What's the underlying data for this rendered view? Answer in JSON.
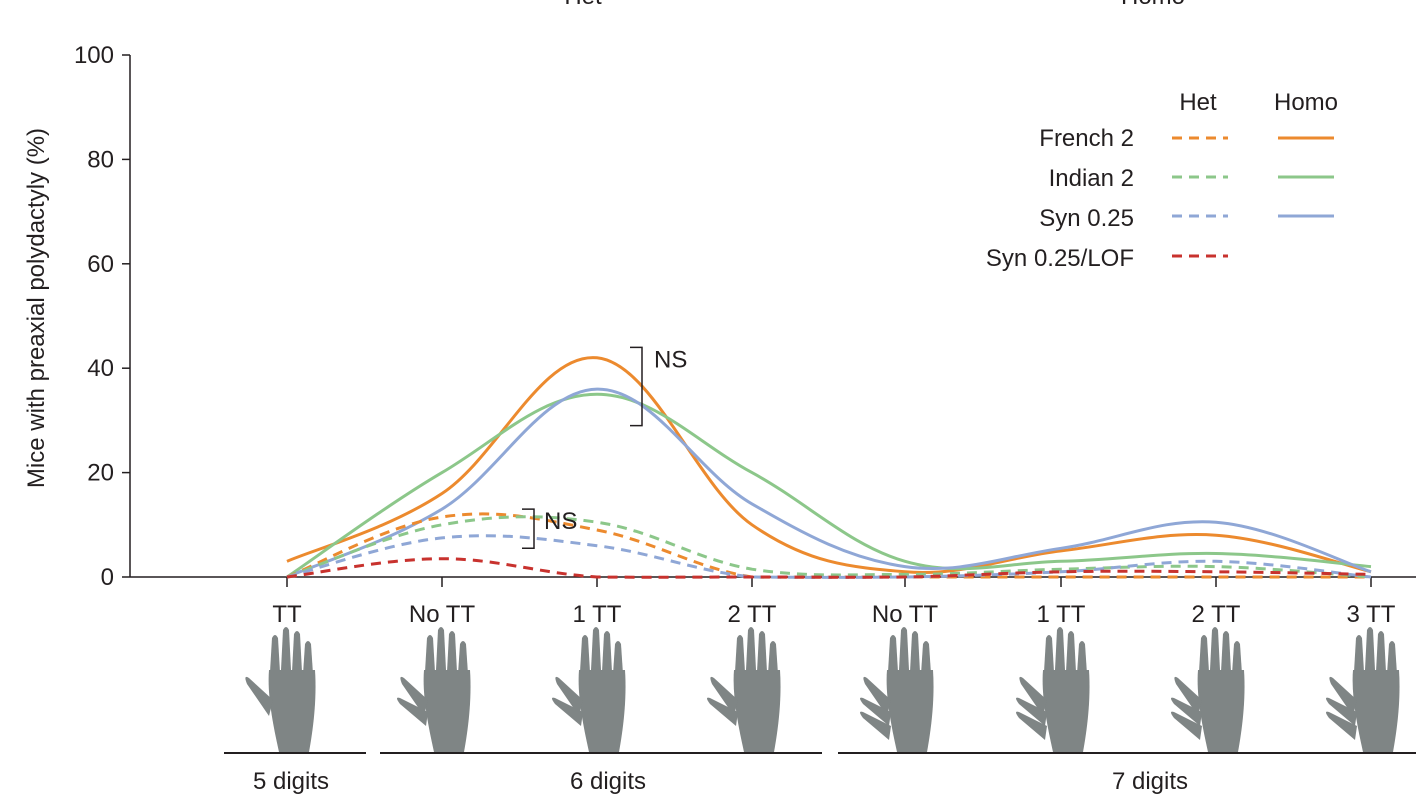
{
  "chart_data": {
    "type": "line",
    "title": "",
    "top_labels": [
      "Het",
      "Homo"
    ],
    "ylabel": "Mice with preaxial polydactyly (%)",
    "ylim": [
      0,
      100
    ],
    "yticks": [
      "0",
      "20",
      "40",
      "60",
      "80",
      "100"
    ],
    "categories": [
      "TT",
      "No TT",
      "1 TT",
      "2 TT",
      "No TT",
      "1 TT",
      "2 TT",
      "3 TT"
    ],
    "digit_groups": [
      {
        "label": "5 digits",
        "categories": [
          "TT"
        ]
      },
      {
        "label": "6 digits",
        "categories": [
          "No TT",
          "1 TT",
          "2 TT"
        ]
      },
      {
        "label": "7 digits",
        "categories": [
          "No TT",
          "1 TT",
          "2 TT",
          "3 TT"
        ]
      }
    ],
    "legend": {
      "columns": [
        "Het",
        "Homo"
      ],
      "rows": [
        "French 2",
        "Indian 2",
        "Syn 0.25",
        "Syn 0.25/LOF"
      ]
    },
    "colors": {
      "French 2": "#ec8a2e",
      "Indian 2": "#8cc78a",
      "Syn 0.25": "#8fa7d6",
      "Syn 0.25/LOF": "#c8322e",
      "axis": "#231f20",
      "hand": "#7f8585"
    },
    "series": [
      {
        "name": "French 2",
        "genotype": "Homo",
        "style": "solid",
        "values": [
          3,
          16,
          42,
          10,
          1,
          5,
          8,
          1
        ]
      },
      {
        "name": "Indian 2",
        "genotype": "Homo",
        "style": "solid",
        "values": [
          0,
          20,
          35,
          20,
          3,
          3,
          4.5,
          2
        ]
      },
      {
        "name": "Syn 0.25",
        "genotype": "Homo",
        "style": "solid",
        "values": [
          0,
          13,
          36,
          14,
          2,
          5.5,
          10.5,
          1
        ]
      },
      {
        "name": "French 2",
        "genotype": "Het",
        "style": "dashed",
        "values": [
          0,
          11.5,
          9,
          0,
          0,
          0,
          0,
          0
        ]
      },
      {
        "name": "Indian 2",
        "genotype": "Het",
        "style": "dashed",
        "values": [
          0,
          10,
          10.5,
          1.5,
          0.5,
          1.5,
          2,
          0
        ]
      },
      {
        "name": "Syn 0.25",
        "genotype": "Het",
        "style": "dashed",
        "values": [
          0,
          7.5,
          6,
          0,
          0,
          1,
          3,
          0
        ]
      },
      {
        "name": "Syn 0.25/LOF",
        "genotype": "Het",
        "style": "dashed",
        "values": [
          0,
          3.5,
          0,
          0,
          0,
          1,
          1,
          0.5
        ]
      }
    ],
    "annotations": [
      {
        "text": "NS",
        "range": [
          29,
          44
        ],
        "at": "1 TT"
      },
      {
        "text": "NS",
        "range": [
          5.5,
          13
        ],
        "at": "1 TT"
      }
    ],
    "grid": false,
    "legend_placement": "top-right"
  }
}
